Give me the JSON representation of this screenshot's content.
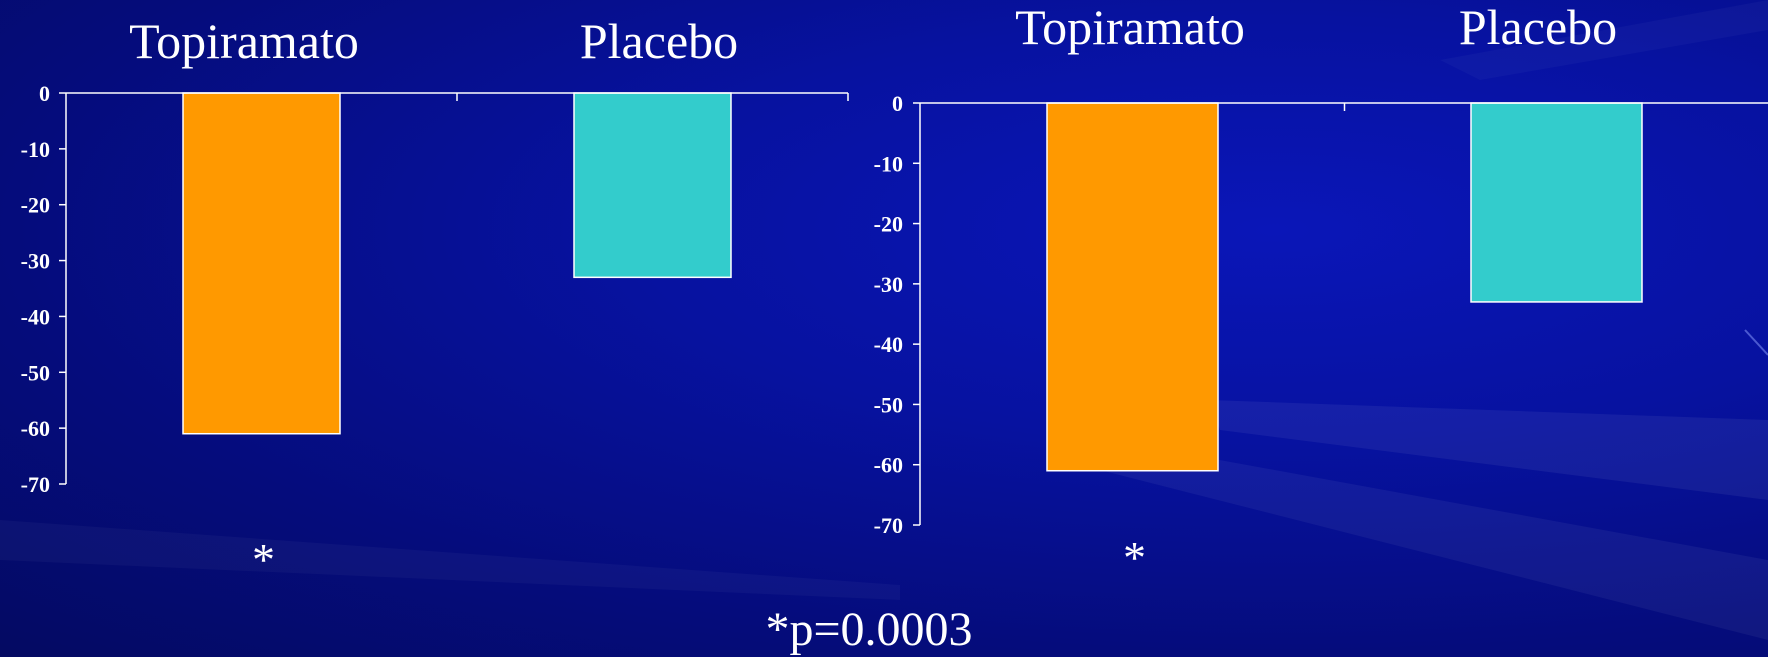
{
  "chart_data": [
    {
      "type": "bar",
      "categories": [
        "Topiramato",
        "Placebo"
      ],
      "values": [
        -61,
        -33
      ],
      "colors": [
        "#ff9900",
        "#33cccc"
      ],
      "ylim": [
        -70,
        0
      ],
      "yticks": [
        0,
        -10,
        -20,
        -30,
        -40,
        -50,
        -60,
        -70
      ],
      "annotation": "*",
      "title": "",
      "xlabel": "",
      "ylabel": ""
    },
    {
      "type": "bar",
      "categories": [
        "Topiramato",
        "Placebo"
      ],
      "values": [
        -61,
        -33
      ],
      "colors": [
        "#ff9900",
        "#33cccc"
      ],
      "ylim": [
        -70,
        0
      ],
      "yticks": [
        0,
        -10,
        -20,
        -30,
        -40,
        -50,
        -60,
        -70
      ],
      "annotation": "*",
      "title": "",
      "xlabel": "",
      "ylabel": ""
    }
  ],
  "footnote": "*p=0.0003"
}
